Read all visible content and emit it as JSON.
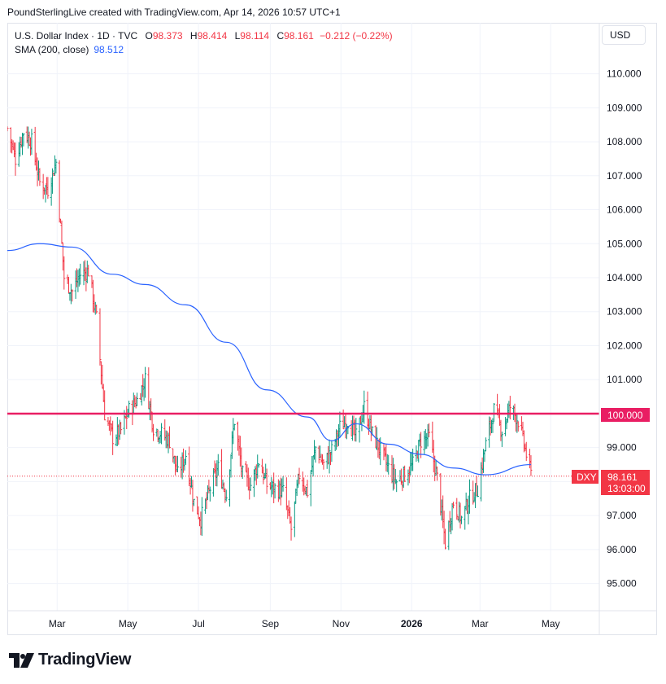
{
  "header": {
    "text": "PoundSterlingLive created with TradingView.com, Apr 14, 2026 10:57 UTC+1"
  },
  "legend": {
    "symbol": "U.S. Dollar Index · 1D · TVC",
    "open_label": "O",
    "open": "98.373",
    "high_label": "H",
    "high": "98.414",
    "low_label": "L",
    "low": "98.114",
    "close_label": "C",
    "close": "98.161",
    "change": "−0.212 (−0.22%)",
    "sma_label": "SMA (200, close)",
    "sma_value": "98.512"
  },
  "currency_button": "USD",
  "price_tags": {
    "level_label": "100.000",
    "symbol_label": "DXY",
    "last_price": "98.161",
    "countdown": "13:03:00"
  },
  "branding": {
    "logo_text": "TradingView",
    "logo_icon": "tradingview-logo-icon"
  },
  "colors": {
    "up": "#089981",
    "down": "#f23645",
    "sma": "#2962ff",
    "level": "#e91e63",
    "grid": "#f0f3fa"
  },
  "chart_data": {
    "type": "ohlc",
    "title": "U.S. Dollar Index · 1D · TVC",
    "y_ticks": [
      "95.000",
      "96.000",
      "97.000",
      "98.000",
      "99.000",
      "100.000",
      "101.000",
      "102.000",
      "103.000",
      "104.000",
      "105.000",
      "106.000",
      "107.000",
      "108.000",
      "109.000",
      "110.000"
    ],
    "ylim": [
      94.2,
      111.5
    ],
    "x_ticks": [
      {
        "label": "Mar",
        "date": "2025-03-01",
        "bold": false
      },
      {
        "label": "May",
        "date": "2025-05-01",
        "bold": false
      },
      {
        "label": "Jul",
        "date": "2025-07-01",
        "bold": false
      },
      {
        "label": "Sep",
        "date": "2025-09-01",
        "bold": false
      },
      {
        "label": "Nov",
        "date": "2025-11-01",
        "bold": false
      },
      {
        "label": "2026",
        "date": "2026-01-01",
        "bold": true
      },
      {
        "label": "Mar",
        "date": "2026-03-01",
        "bold": false
      },
      {
        "label": "May",
        "date": "2026-05-01",
        "bold": false
      }
    ],
    "xlim": [
      "2025-01-17",
      "2026-06-12"
    ],
    "grid": true,
    "horizontal_line": {
      "value": 100.0,
      "label": "100.000"
    },
    "last_price": 98.161,
    "price_path": [
      [
        "2025-01-17",
        108.4
      ],
      [
        "2025-01-24",
        107.5
      ],
      [
        "2025-01-31",
        108.3
      ],
      [
        "2025-02-07",
        108.0
      ],
      [
        "2025-02-14",
        106.8
      ],
      [
        "2025-02-21",
        106.6
      ],
      [
        "2025-02-28",
        107.4
      ],
      [
        "2025-03-07",
        104.0
      ],
      [
        "2025-03-14",
        103.6
      ],
      [
        "2025-03-21",
        104.1
      ],
      [
        "2025-03-28",
        104.2
      ],
      [
        "2025-04-04",
        102.8
      ],
      [
        "2025-04-11",
        100.0
      ],
      [
        "2025-04-18",
        99.3
      ],
      [
        "2025-04-25",
        99.5
      ],
      [
        "2025-05-02",
        100.1
      ],
      [
        "2025-05-09",
        100.4
      ],
      [
        "2025-05-16",
        101.0
      ],
      [
        "2025-05-23",
        99.6
      ],
      [
        "2025-05-30",
        99.4
      ],
      [
        "2025-06-06",
        99.2
      ],
      [
        "2025-06-13",
        98.2
      ],
      [
        "2025-06-20",
        98.8
      ],
      [
        "2025-06-27",
        97.4
      ],
      [
        "2025-07-03",
        96.9
      ],
      [
        "2025-07-11",
        97.8
      ],
      [
        "2025-07-18",
        98.4
      ],
      [
        "2025-07-25",
        97.6
      ],
      [
        "2025-08-01",
        99.8
      ],
      [
        "2025-08-08",
        98.2
      ],
      [
        "2025-08-15",
        97.9
      ],
      [
        "2025-08-22",
        98.6
      ],
      [
        "2025-08-29",
        97.9
      ],
      [
        "2025-09-05",
        97.8
      ],
      [
        "2025-09-12",
        97.7
      ],
      [
        "2025-09-19",
        96.6
      ],
      [
        "2025-09-26",
        98.2
      ],
      [
        "2025-10-03",
        97.7
      ],
      [
        "2025-10-10",
        99.0
      ],
      [
        "2025-10-17",
        98.5
      ],
      [
        "2025-10-24",
        98.9
      ],
      [
        "2025-10-31",
        99.6
      ],
      [
        "2025-11-07",
        99.8
      ],
      [
        "2025-11-14",
        99.3
      ],
      [
        "2025-11-21",
        100.2
      ],
      [
        "2025-11-28",
        99.4
      ],
      [
        "2025-12-05",
        98.9
      ],
      [
        "2025-12-12",
        98.4
      ],
      [
        "2025-12-19",
        98.0
      ],
      [
        "2025-12-26",
        98.2
      ],
      [
        "2026-01-02",
        98.5
      ],
      [
        "2026-01-09",
        99.2
      ],
      [
        "2026-01-16",
        99.3
      ],
      [
        "2026-01-23",
        98.1
      ],
      [
        "2026-01-30",
        96.2
      ],
      [
        "2026-02-06",
        97.4
      ],
      [
        "2026-02-13",
        96.9
      ],
      [
        "2026-02-20",
        97.5
      ],
      [
        "2026-02-27",
        97.8
      ],
      [
        "2026-03-06",
        99.1
      ],
      [
        "2026-03-13",
        100.1
      ],
      [
        "2026-03-20",
        99.5
      ],
      [
        "2026-03-27",
        100.2
      ],
      [
        "2026-04-03",
        99.8
      ],
      [
        "2026-04-10",
        98.8
      ],
      [
        "2026-04-14",
        98.2
      ]
    ],
    "sma_200": [
      [
        "2025-01-17",
        104.8
      ],
      [
        "2025-02-14",
        105.0
      ],
      [
        "2025-03-14",
        104.9
      ],
      [
        "2025-04-18",
        104.1
      ],
      [
        "2025-05-16",
        103.8
      ],
      [
        "2025-06-20",
        103.2
      ],
      [
        "2025-07-25",
        102.1
      ],
      [
        "2025-08-29",
        100.7
      ],
      [
        "2025-10-03",
        99.9
      ],
      [
        "2025-10-24",
        99.2
      ],
      [
        "2025-11-14",
        99.7
      ],
      [
        "2025-12-12",
        99.1
      ],
      [
        "2026-01-09",
        98.8
      ],
      [
        "2026-02-06",
        98.4
      ],
      [
        "2026-03-06",
        98.2
      ],
      [
        "2026-04-14",
        98.5
      ]
    ]
  }
}
